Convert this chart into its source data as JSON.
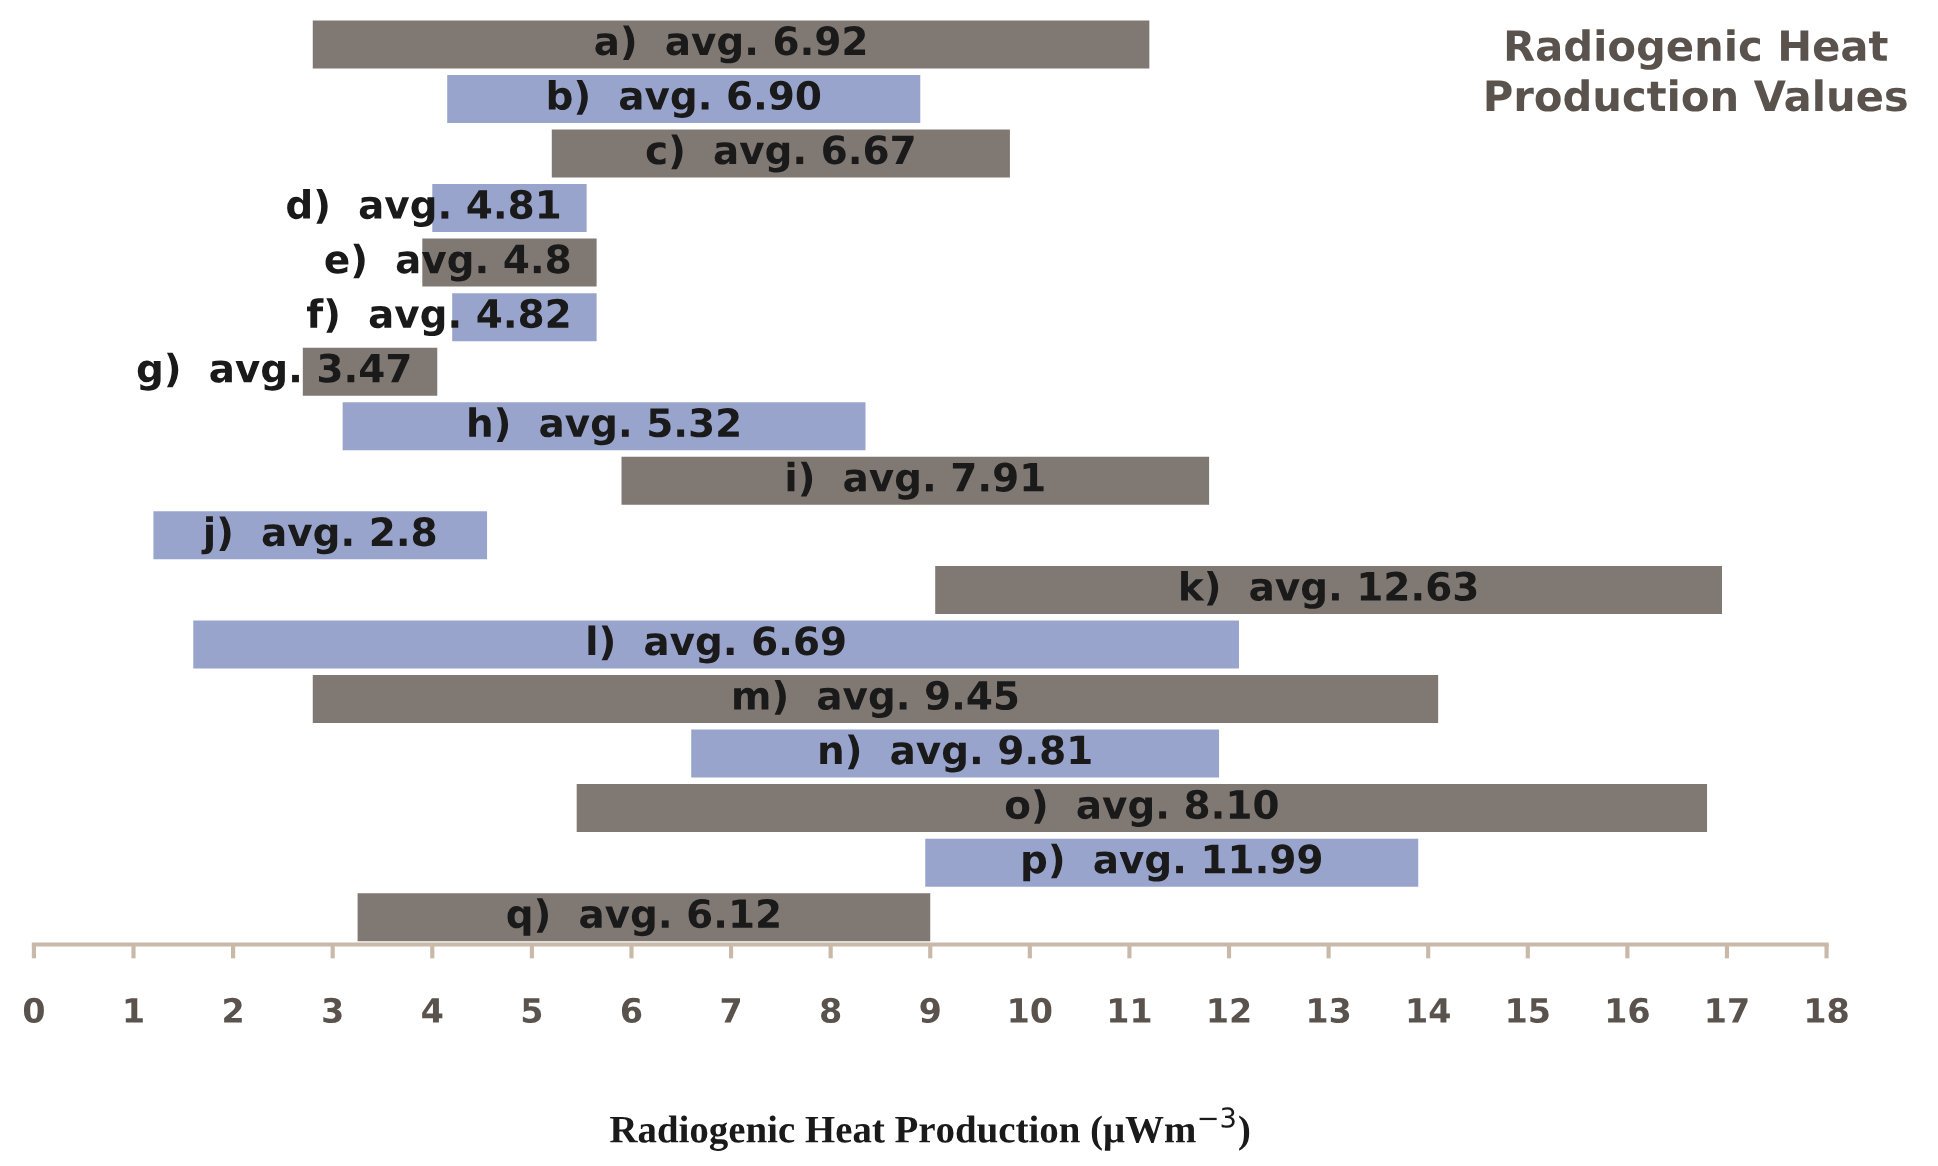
{
  "chart_data": {
    "type": "bar",
    "orientation": "horizontal",
    "title": "Radiogenic Heat\nProduction Values",
    "xlabel": "Radiogenic Heat Production (μWm$^{−3}$)",
    "categories": [
      null,
      null,
      null,
      null,
      null,
      null,
      null,
      null,
      null,
      null,
      null,
      null,
      null,
      null,
      null,
      null,
      null
    ],
    "base": [
      2.8,
      4.15,
      5.2,
      4.0,
      3.9,
      4.2,
      2.7,
      3.1,
      5.9,
      1.2,
      9.05,
      1.6,
      2.8,
      6.6,
      5.45,
      8.95,
      3.25
    ],
    "values": [
      8.4,
      4.75,
      4.6,
      1.55,
      1.75,
      1.45,
      1.35,
      5.25,
      5.9,
      3.35,
      7.9,
      10.5,
      11.3,
      5.3,
      11.35,
      4.95,
      5.75
    ],
    "colors": [
      "#807873",
      "#99a4cc",
      "#807873",
      "#99a4cc",
      "#807873",
      "#99a4cc",
      "#807873",
      "#99a4cc",
      "#807873",
      "#99a4cc",
      "#807873",
      "#99a4cc",
      "#807873",
      "#99a4cc",
      "#807873",
      "#99a4cc",
      "#807873"
    ],
    "annotations": [
      "a)  avg. 6.92",
      "b)  avg. 6.90",
      "c)  avg. 6.67",
      "d)  avg. 4.81",
      "e)  avg. 4.8",
      "f)  avg. 4.82",
      "g)  avg. 3.47",
      "h)  avg. 5.32",
      "i)  avg. 7.91",
      "j)  avg. 2.8",
      "k)  avg. 12.63",
      "l)  avg. 6.69",
      "m)  avg. 9.45",
      "n)  avg. 9.81",
      "o)  avg. 8.10",
      "p)  avg. 11.99",
      "q)  avg. 6.12"
    ],
    "xlim": [
      0,
      18
    ],
    "xticks": [
      0,
      1,
      2,
      3,
      4,
      5,
      6,
      7,
      8,
      9,
      10,
      11,
      12,
      13,
      14,
      15,
      16,
      17,
      18
    ],
    "tick_labels": "x",
    "grid": false,
    "legend": false
  }
}
